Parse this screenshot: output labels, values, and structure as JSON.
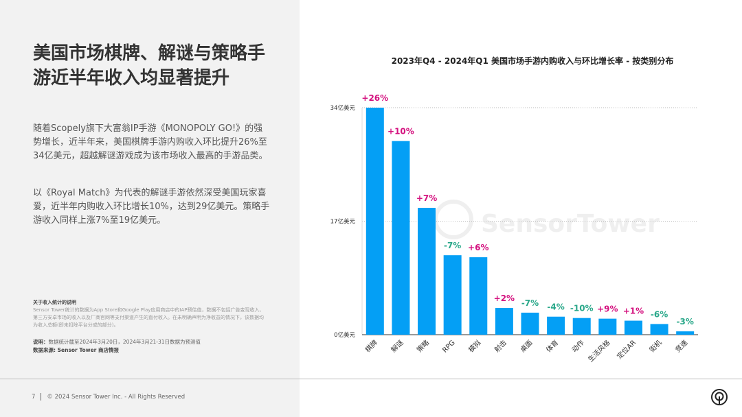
{
  "title": "美国市场棋牌、解谜与策略手游近半年收入均显著提升",
  "paragraphs": [
    "随着Scopely旗下大富翁IP手游《MONOPOLY GO!》的强势增长，近半年来，美国棋牌手游内购收入环比提升26%至34亿美元，超越解谜游戏成为该市场收入最高的手游品类。",
    "以《Royal Match》为代表的解谜手游依然深受美国玩家喜爱，近半年内购收入环比增长10%，达到29亿美元。策略手游收入同样上涨7%至19亿美元。"
  ],
  "note": {
    "title": "关于收入统计的说明",
    "body": "Sensor Tower统计的数据为App Store和Google Play应用商店中的IAP预估值，数据不包括广告变现收入、第三方安卓市场的收入以及厂商官网等支付渠道产生的直付收入。在未明确声明为净收益的情况下，该数据均为收入总额(即未扣除平台分成的部分)。"
  },
  "explain": {
    "label": "说明：",
    "text": "数据统计截至2024年3月20日，2024年3月21-31日数据为预测值"
  },
  "source": {
    "label": "数据来源:",
    "text": " Sensor Tower 商店情报"
  },
  "footer": {
    "page": "7",
    "copyright": "© 2024 Sensor Tower Inc. - All Rights Reserved"
  },
  "watermark": "SensorTower",
  "chart_data": {
    "type": "bar",
    "title": "2023年Q4 - 2024年Q1 美国市场手游内购收入与环比增长率 - 按类别分布",
    "categories": [
      "棋牌",
      "解谜",
      "策略",
      "RPG",
      "模拟",
      "射击",
      "桌面",
      "体育",
      "动作",
      "生活风格",
      "定位AR",
      "街机",
      "竞速"
    ],
    "values": [
      34,
      29,
      19,
      11.9,
      11.6,
      4.0,
      3.3,
      2.7,
      2.5,
      2.4,
      2.1,
      1.6,
      0.5
    ],
    "growth_labels": [
      "+26%",
      "+10%",
      "+7%",
      "-7%",
      "+6%",
      "+2%",
      "-7%",
      "-4%",
      "-10%",
      "+9%",
      "+1%",
      "-6%",
      "-3%"
    ],
    "unit": "亿美元",
    "yticks": [
      {
        "v": 0,
        "label": "0亿美元"
      },
      {
        "v": 17,
        "label": "17亿美元"
      },
      {
        "v": 34,
        "label": "34亿美元"
      }
    ],
    "ylim": [
      0,
      34
    ],
    "grid": "dotted horizontal",
    "colors": {
      "bar": "#049ff5",
      "positive": "#d4127f",
      "negative": "#2aa88a"
    }
  }
}
